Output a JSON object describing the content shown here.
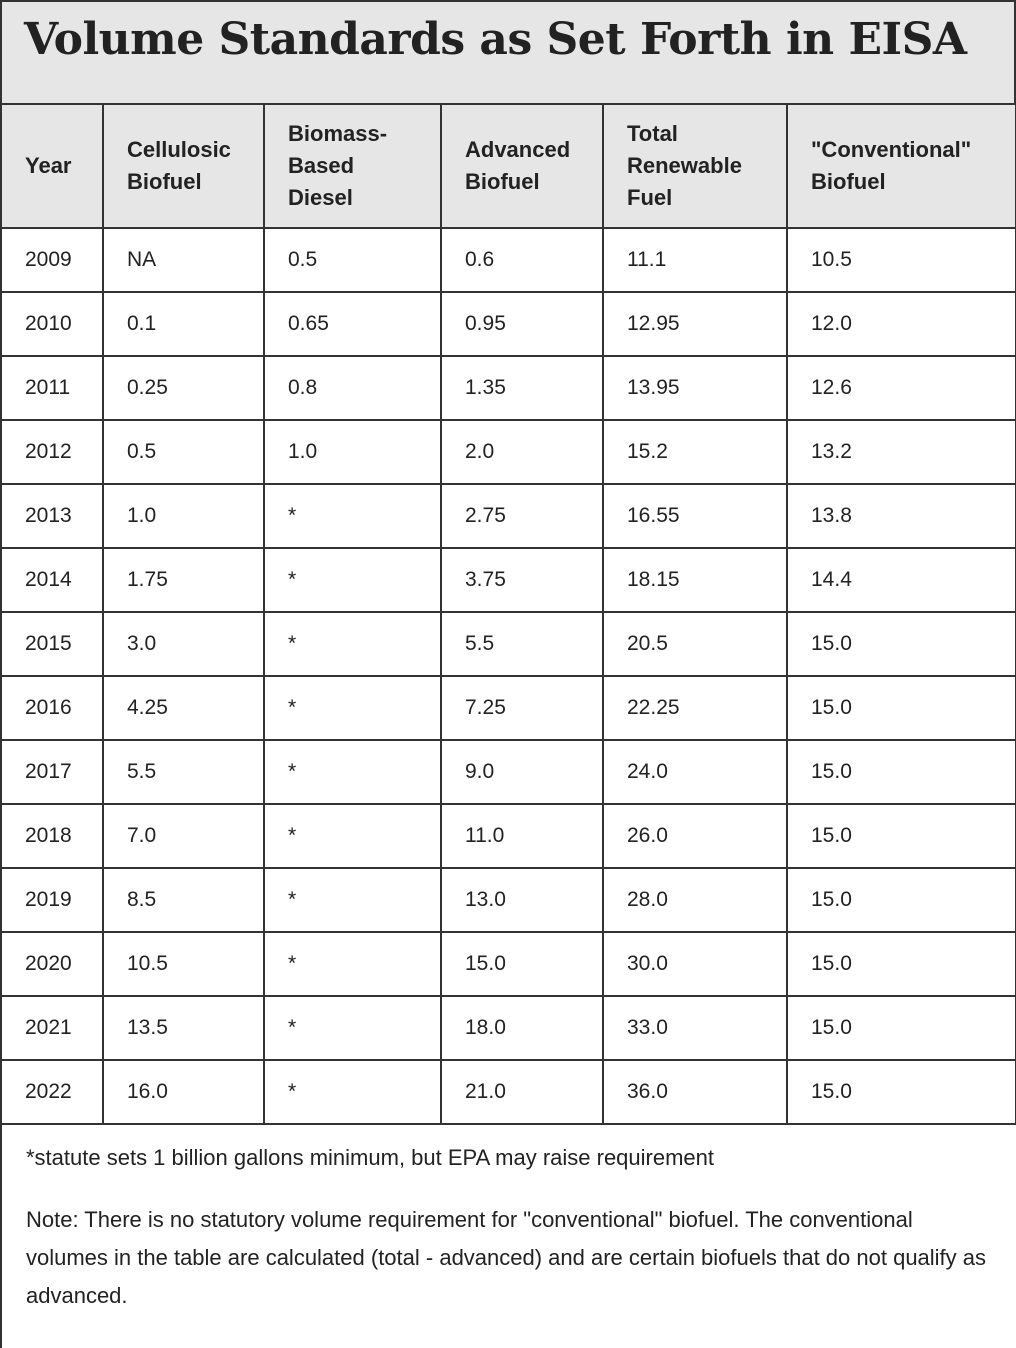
{
  "title": "Volume Standards as Set Forth in EISA",
  "table": {
    "header": [
      "Year",
      "Cellulosic Biofuel",
      "Biomass-Based Diesel",
      "Advanced Biofuel",
      "Total Renewable Fuel",
      "\"Conventional\" Biofuel"
    ],
    "rows": [
      [
        "2009",
        "NA",
        "0.5",
        "0.6",
        "11.1",
        "10.5"
      ],
      [
        "2010",
        "0.1",
        "0.65",
        "0.95",
        "12.95",
        "12.0"
      ],
      [
        "2011",
        "0.25",
        "0.8",
        "1.35",
        "13.95",
        "12.6"
      ],
      [
        "2012",
        "0.5",
        "1.0",
        "2.0",
        "15.2",
        "13.2"
      ],
      [
        "2013",
        "1.0",
        "*",
        "2.75",
        "16.55",
        "13.8"
      ],
      [
        "2014",
        "1.75",
        "*",
        "3.75",
        "18.15",
        "14.4"
      ],
      [
        "2015",
        "3.0",
        "*",
        "5.5",
        "20.5",
        "15.0"
      ],
      [
        "2016",
        "4.25",
        "*",
        "7.25",
        "22.25",
        "15.0"
      ],
      [
        "2017",
        "5.5",
        "*",
        "9.0",
        "24.0",
        "15.0"
      ],
      [
        "2018",
        "7.0",
        "*",
        "11.0",
        "26.0",
        "15.0"
      ],
      [
        "2019",
        "8.5",
        "*",
        "13.0",
        "28.0",
        "15.0"
      ],
      [
        "2020",
        "10.5",
        "*",
        "15.0",
        "30.0",
        "15.0"
      ],
      [
        "2021",
        "13.5",
        "*",
        "18.0",
        "33.0",
        "15.0"
      ],
      [
        "2022",
        "16.0",
        "*",
        "21.0",
        "36.0",
        "15.0"
      ]
    ]
  },
  "footnote": "*statute sets 1 billion gallons minimum, but EPA may raise requirement",
  "note": "Note: There is no statutory volume requirement for \"conventional\" biofuel. The conventional volumes in the table are calculated (total - advanced) and are certain biofuels that do not qualify as advanced."
}
